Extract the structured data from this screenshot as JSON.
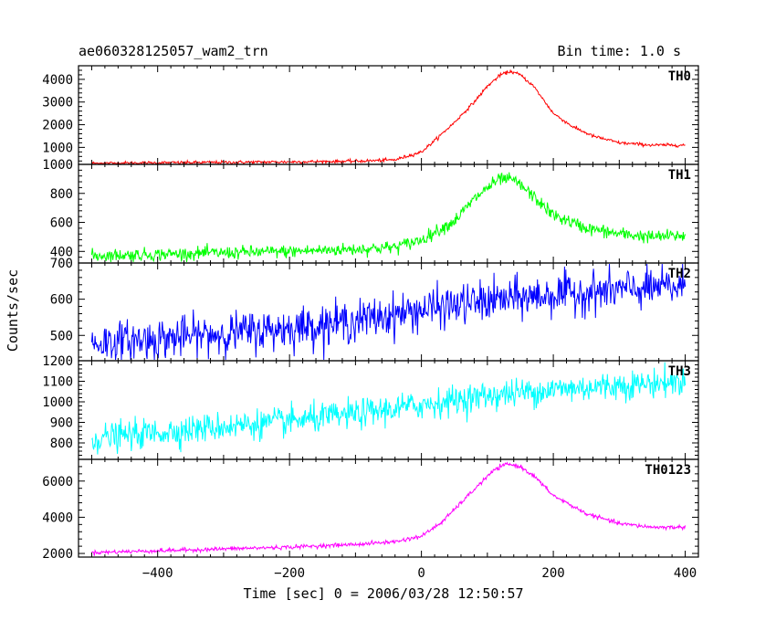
{
  "header": {
    "title": "ae060328125057_wam2_trn",
    "bin_time": "Bin time: 1.0 s"
  },
  "chart_data": {
    "type": "line",
    "xlabel": "Time [sec] 0 = 2006/03/28 12:50:57",
    "ylabel": "Counts/sec",
    "xlim": [
      -520,
      420
    ],
    "xticks": [
      -400,
      -200,
      0,
      200,
      400
    ],
    "xtick_labels": [
      "−400",
      "−200",
      "0",
      "200",
      "400"
    ],
    "grid": false,
    "series": [
      {
        "name": "TH0",
        "color": "#ff0000",
        "ylim": [
          250,
          4600
        ],
        "yticks": [
          1000,
          2000,
          3000,
          4000
        ],
        "ytick_labels": [
          "1000",
          "2000",
          "3000",
          "4000"
        ],
        "x": [
          -500,
          -400,
          -300,
          -200,
          -100,
          -40,
          0,
          20,
          50,
          80,
          100,
          120,
          135,
          150,
          170,
          200,
          230,
          260,
          300,
          350,
          400
        ],
        "y": [
          300,
          320,
          340,
          360,
          390,
          450,
          800,
          1300,
          2100,
          3000,
          3700,
          4200,
          4350,
          4200,
          3700,
          2500,
          1900,
          1500,
          1200,
          1100,
          1100
        ],
        "noise": 35
      },
      {
        "name": "TH1",
        "color": "#00ff00",
        "ylim": [
          320,
          1000
        ],
        "yticks": [
          400,
          600,
          800,
          1000
        ],
        "ytick_labels": [
          "400",
          "600",
          "800",
          "1000"
        ],
        "x": [
          -500,
          -400,
          -300,
          -200,
          -100,
          -40,
          0,
          50,
          80,
          100,
          120,
          140,
          160,
          200,
          250,
          300,
          350,
          400
        ],
        "y": [
          370,
          380,
          390,
          400,
          415,
          430,
          480,
          610,
          760,
          840,
          900,
          890,
          820,
          650,
          560,
          520,
          500,
          510
        ],
        "noise": 22
      },
      {
        "name": "TH2",
        "color": "#0000ff",
        "ylim": [
          430,
          700
        ],
        "yticks": [
          500,
          600,
          700
        ],
        "ytick_labels": [
          "500",
          "600",
          "700"
        ],
        "x": [
          -500,
          -400,
          -300,
          -200,
          -100,
          0,
          100,
          200,
          300,
          400
        ],
        "y": [
          478,
          490,
          505,
          520,
          540,
          570,
          595,
          612,
          625,
          635
        ],
        "noise": 28
      },
      {
        "name": "TH3",
        "color": "#00ffff",
        "ylim": [
          720,
          1200
        ],
        "yticks": [
          800,
          900,
          1000,
          1100,
          1200
        ],
        "ytick_labels": [
          "800",
          "900",
          "1000",
          "1100",
          "1200"
        ],
        "x": [
          -500,
          -400,
          -300,
          -200,
          -100,
          0,
          100,
          200,
          300,
          400
        ],
        "y": [
          820,
          850,
          880,
          905,
          940,
          985,
          1030,
          1060,
          1080,
          1100
        ],
        "noise": 35
      },
      {
        "name": "TH0123",
        "color": "#ff00ff",
        "ylim": [
          1800,
          7200
        ],
        "yticks": [
          2000,
          4000,
          6000
        ],
        "ytick_labels": [
          "2000",
          "4000",
          "6000"
        ],
        "x": [
          -500,
          -400,
          -300,
          -200,
          -100,
          -40,
          0,
          30,
          60,
          90,
          110,
          130,
          150,
          170,
          200,
          250,
          300,
          350,
          400
        ],
        "y": [
          2050,
          2150,
          2250,
          2350,
          2500,
          2650,
          2950,
          3700,
          4800,
          5900,
          6600,
          6950,
          6800,
          6300,
          5200,
          4200,
          3650,
          3450,
          3450
        ],
        "noise": 55
      }
    ]
  }
}
